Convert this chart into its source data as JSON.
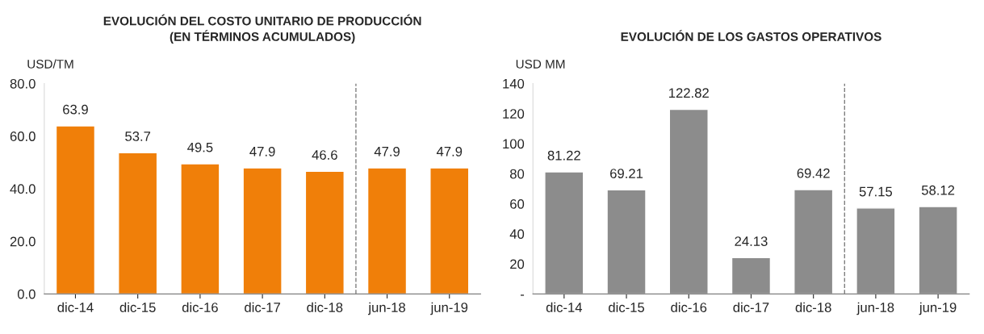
{
  "chart_data": [
    {
      "type": "bar",
      "title": "EVOLUCIÓN DEL COSTO UNITARIO DE PRODUCCIÓN\n(EN TÉRMINOS ACUMULADOS)",
      "ylabel": "USD/TM",
      "categories": [
        "dic-14",
        "dic-15",
        "dic-16",
        "dic-17",
        "dic-18",
        "jun-18",
        "jun-19"
      ],
      "series": [
        {
          "color": "#f07f09",
          "values": [
            63.9,
            53.7,
            49.5,
            47.9,
            46.6,
            47.9,
            47.9
          ]
        }
      ],
      "ylim": [
        0,
        80
      ],
      "yticks": [
        {
          "value": 0,
          "label": "0.0"
        },
        {
          "value": 20,
          "label": "20.0"
        },
        {
          "value": 40,
          "label": "40.0"
        },
        {
          "value": 60,
          "label": "60.0"
        },
        {
          "value": 80,
          "label": "80.0"
        }
      ],
      "data_labels": true,
      "grid": false,
      "legend": false
    },
    {
      "type": "bar",
      "title": "EVOLUCIÓN DE LOS GASTOS OPERATIVOS",
      "ylabel": "USD MM",
      "categories": [
        "dic-14",
        "dic-15",
        "dic-16",
        "dic-17",
        "dic-18",
        "jun-18",
        "jun-19"
      ],
      "series": [
        {
          "color": "#8c8c8c",
          "values": [
            81.22,
            69.21,
            122.82,
            24.13,
            69.42,
            57.15,
            58.12
          ]
        }
      ],
      "ylim": [
        0,
        140
      ],
      "yticks": [
        {
          "value": 0,
          "label": "-"
        },
        20,
        40,
        60,
        80,
        100,
        120,
        140
      ],
      "data_labels": true,
      "grid": false,
      "legend": false
    }
  ]
}
